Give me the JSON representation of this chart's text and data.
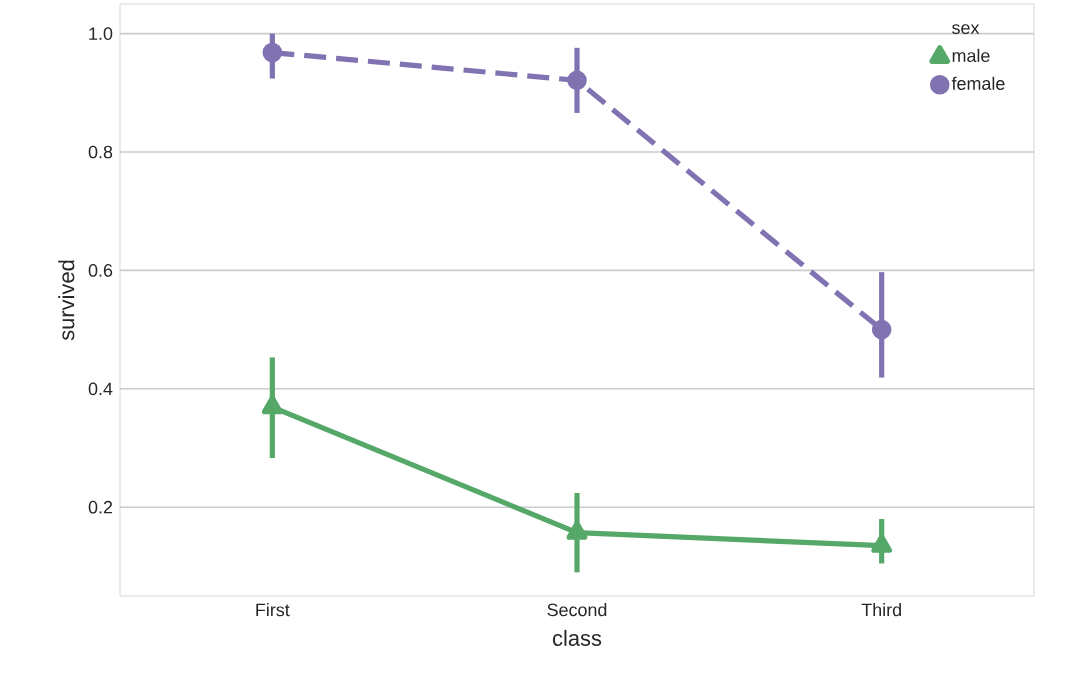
{
  "chart_data": {
    "type": "line",
    "xlabel": "class",
    "ylabel": "survived",
    "legend_title": "sex",
    "categories": [
      "First",
      "Second",
      "Third"
    ],
    "series": [
      {
        "name": "male",
        "color": "#55a868",
        "marker": "triangle",
        "line_style": "solid",
        "values": [
          0.369,
          0.157,
          0.135
        ],
        "errors": [
          [
            0.283,
            0.453
          ],
          [
            0.09,
            0.224
          ],
          [
            0.105,
            0.18
          ]
        ]
      },
      {
        "name": "female",
        "color": "#8172b2",
        "marker": "circle",
        "line_style": "dashed",
        "values": [
          0.968,
          0.921,
          0.5
        ],
        "errors": [
          [
            0.924,
            1.0
          ],
          [
            0.866,
            0.976
          ],
          [
            0.419,
            0.597
          ]
        ]
      }
    ],
    "ylim": [
      0.05,
      1.05
    ],
    "yticks": [
      0.2,
      0.4,
      0.6,
      0.8,
      {
        "value": 1,
        "label": "1.0"
      }
    ],
    "grid": "y",
    "legend": "top right"
  }
}
